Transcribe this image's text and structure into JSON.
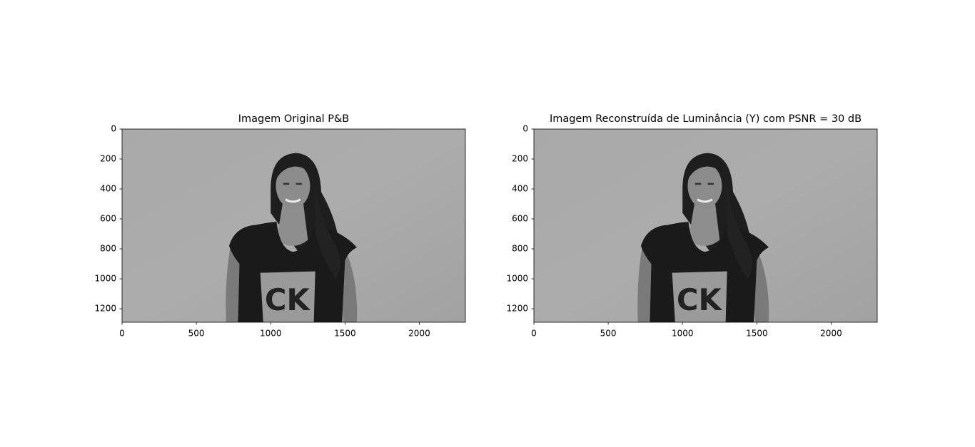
{
  "chart_data": [
    {
      "type": "image",
      "title": "Imagem Original P&B",
      "xlim": [
        0,
        2310
      ],
      "ylim": [
        1290,
        0
      ],
      "xticks": [
        0,
        500,
        1000,
        1500,
        2000
      ],
      "yticks": [
        0,
        200,
        400,
        600,
        800,
        1000,
        1200
      ]
    },
    {
      "type": "image",
      "title": "Imagem Reconstruída de Luminância (Y) com PSNR = 30 dB",
      "xlim": [
        0,
        2310
      ],
      "ylim": [
        1290,
        0
      ],
      "xticks": [
        0,
        500,
        1000,
        1500,
        2000
      ],
      "yticks": [
        0,
        200,
        400,
        600,
        800,
        1000,
        1200
      ]
    }
  ]
}
